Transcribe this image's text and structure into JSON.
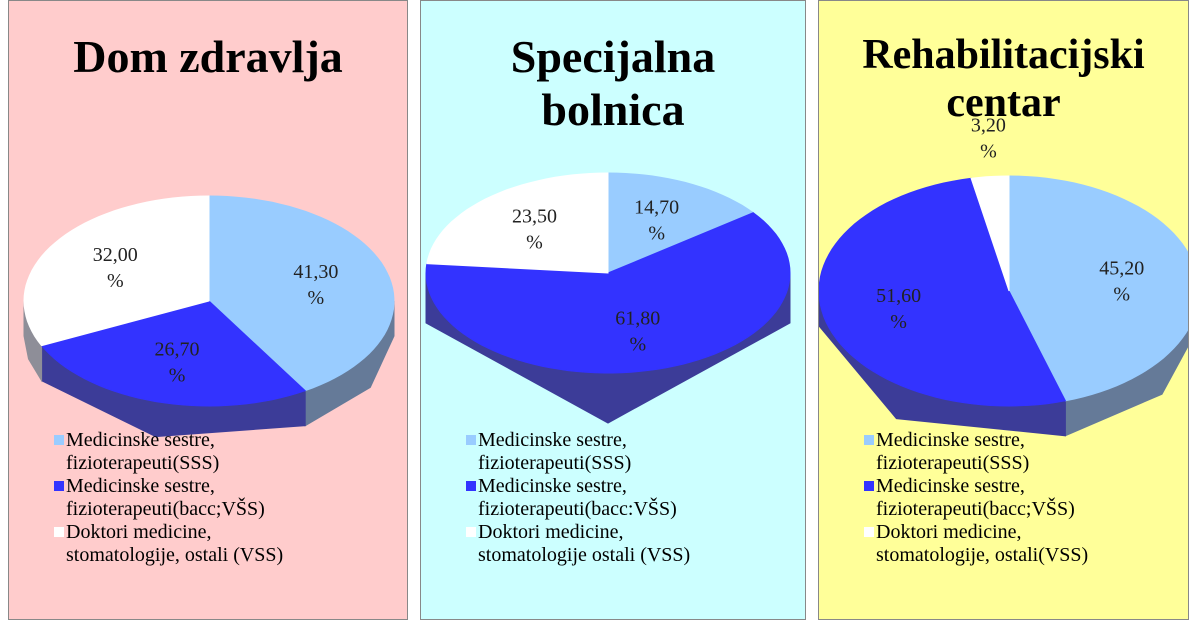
{
  "chart_data": [
    {
      "type": "pie",
      "title": "Dom zdravlja",
      "background": "#ffcccc",
      "categories": [
        "Medicinske sestre, fizioterapeuti(SSS)",
        "Medicinske sestre, fizioterapeuti(bacc;VŠS)",
        "Doktori medicine, stomatologije, ostali (VSS)"
      ],
      "values": [
        41.3,
        26.7,
        32.0
      ],
      "value_labels": [
        "41,30 %",
        "26,70 %",
        "32,00 %"
      ],
      "colors": [
        "#99ccff",
        "#3333ff",
        "#ffffff"
      ]
    },
    {
      "type": "pie",
      "title": "Specijalna bolnica",
      "background": "#ccffff",
      "categories": [
        "Medicinske sestre, fizioterapeuti(SSS)",
        "Medicinske sestre, fizioterapeuti(bacc:VŠS)",
        "Doktori medicine, stomatologije ostali (VSS)"
      ],
      "values": [
        14.7,
        61.8,
        23.5
      ],
      "value_labels": [
        "14,70 %",
        "61,80 %",
        "23,50 %"
      ],
      "colors": [
        "#99ccff",
        "#3333ff",
        "#ffffff"
      ]
    },
    {
      "type": "pie",
      "title": "Rehabilitacijski centar",
      "background": "#ffff99",
      "categories": [
        "Medicinske sestre, fizioterapeuti(SSS)",
        "Medicinske sestre, fizioterapeuti(bacc;VŠS)",
        "Doktori medicine, stomatologije, ostali(VSS)"
      ],
      "values": [
        45.2,
        51.6,
        3.2
      ],
      "value_labels": [
        "45,20 %",
        "51,60 %",
        "3,20 %"
      ],
      "colors": [
        "#99ccff",
        "#3333ff",
        "#ffffff"
      ]
    }
  ]
}
